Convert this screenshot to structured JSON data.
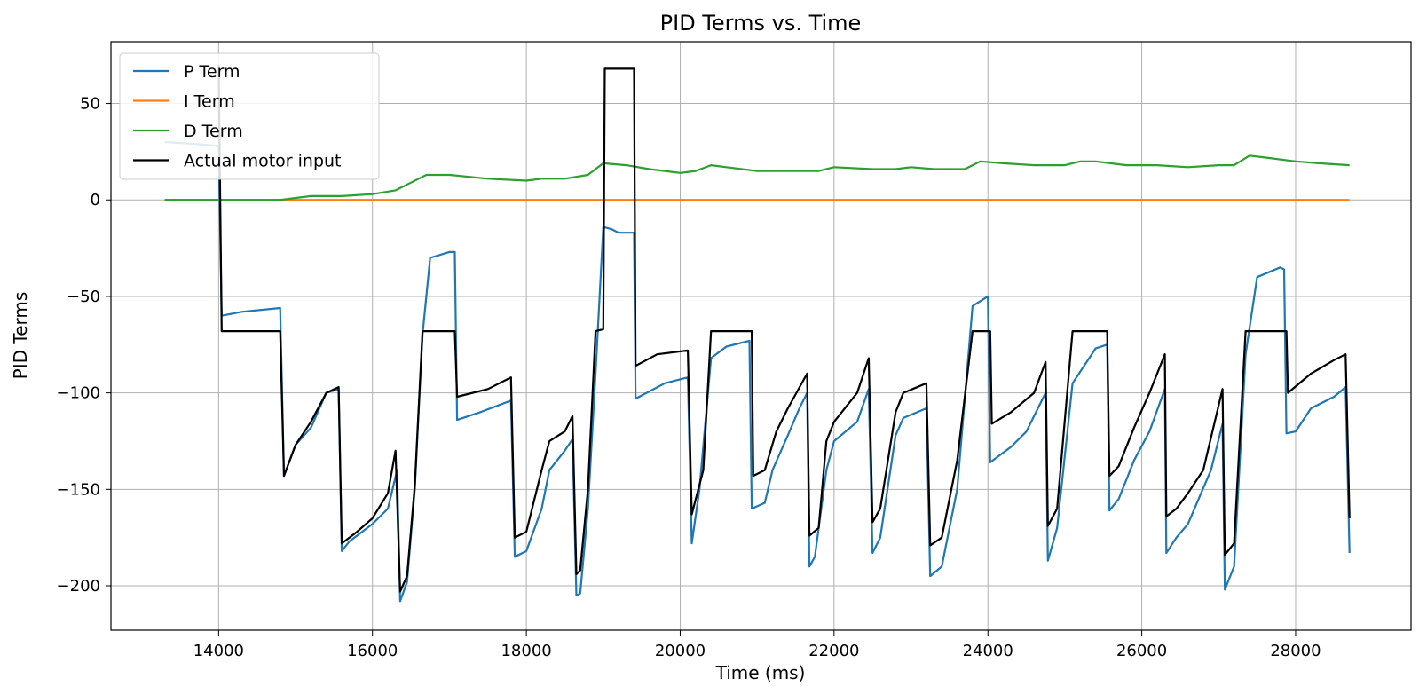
{
  "chart_data": {
    "type": "line",
    "title": "PID Terms vs. Time",
    "xlabel": "Time (ms)",
    "ylabel": "PID Terms",
    "xlim": [
      12600,
      29500
    ],
    "ylim": [
      -223,
      82
    ],
    "xticks": [
      14000,
      16000,
      18000,
      20000,
      22000,
      24000,
      26000,
      28000
    ],
    "yticks": [
      50,
      0,
      -50,
      -100,
      -150,
      -200
    ],
    "ytick_labels": [
      "50",
      "0",
      "−50",
      "−100",
      "−150",
      "−200"
    ],
    "grid": true,
    "legend": "upper-left",
    "series": [
      {
        "name": "P Term",
        "color": "#1f77b4",
        "points": [
          [
            13300,
            30
          ],
          [
            13700,
            29
          ],
          [
            14000,
            28
          ],
          [
            14040,
            -60
          ],
          [
            14300,
            -58
          ],
          [
            14800,
            -56
          ],
          [
            14850,
            -143
          ],
          [
            15000,
            -127
          ],
          [
            15200,
            -118
          ],
          [
            15400,
            -100
          ],
          [
            15560,
            -98
          ],
          [
            15600,
            -182
          ],
          [
            15700,
            -177
          ],
          [
            16000,
            -168
          ],
          [
            16200,
            -160
          ],
          [
            16320,
            -140
          ],
          [
            16360,
            -208
          ],
          [
            16450,
            -198
          ],
          [
            16550,
            -150
          ],
          [
            16650,
            -70
          ],
          [
            16750,
            -30
          ],
          [
            17000,
            -27
          ],
          [
            17070,
            -27
          ],
          [
            17100,
            -114
          ],
          [
            17400,
            -110
          ],
          [
            17800,
            -104
          ],
          [
            17850,
            -185
          ],
          [
            18000,
            -182
          ],
          [
            18200,
            -160
          ],
          [
            18300,
            -140
          ],
          [
            18500,
            -130
          ],
          [
            18600,
            -124
          ],
          [
            18650,
            -205
          ],
          [
            18700,
            -204
          ],
          [
            18800,
            -160
          ],
          [
            18900,
            -90
          ],
          [
            19000,
            -14
          ],
          [
            19100,
            -15
          ],
          [
            19200,
            -17
          ],
          [
            19400,
            -17
          ],
          [
            19420,
            -103
          ],
          [
            19800,
            -95
          ],
          [
            20100,
            -92
          ],
          [
            20150,
            -178
          ],
          [
            20250,
            -150
          ],
          [
            20400,
            -82
          ],
          [
            20600,
            -76
          ],
          [
            20900,
            -73
          ],
          [
            20930,
            -160
          ],
          [
            21100,
            -157
          ],
          [
            21200,
            -140
          ],
          [
            21400,
            -122
          ],
          [
            21550,
            -108
          ],
          [
            21650,
            -100
          ],
          [
            21680,
            -190
          ],
          [
            21750,
            -185
          ],
          [
            21900,
            -140
          ],
          [
            22000,
            -125
          ],
          [
            22300,
            -115
          ],
          [
            22450,
            -98
          ],
          [
            22500,
            -183
          ],
          [
            22600,
            -175
          ],
          [
            22800,
            -122
          ],
          [
            22900,
            -113
          ],
          [
            23200,
            -108
          ],
          [
            23250,
            -195
          ],
          [
            23400,
            -190
          ],
          [
            23600,
            -150
          ],
          [
            23800,
            -55
          ],
          [
            24000,
            -50
          ],
          [
            24030,
            -136
          ],
          [
            24300,
            -128
          ],
          [
            24500,
            -120
          ],
          [
            24750,
            -100
          ],
          [
            24780,
            -187
          ],
          [
            24900,
            -170
          ],
          [
            25100,
            -95
          ],
          [
            25400,
            -77
          ],
          [
            25550,
            -75
          ],
          [
            25580,
            -161
          ],
          [
            25700,
            -155
          ],
          [
            25900,
            -135
          ],
          [
            26100,
            -120
          ],
          [
            26300,
            -98
          ],
          [
            26320,
            -183
          ],
          [
            26450,
            -175
          ],
          [
            26600,
            -168
          ],
          [
            26900,
            -140
          ],
          [
            27050,
            -116
          ],
          [
            27080,
            -202
          ],
          [
            27200,
            -190
          ],
          [
            27350,
            -80
          ],
          [
            27500,
            -40
          ],
          [
            27800,
            -35
          ],
          [
            27850,
            -36
          ],
          [
            27880,
            -121
          ],
          [
            28000,
            -120
          ],
          [
            28200,
            -108
          ],
          [
            28500,
            -102
          ],
          [
            28650,
            -97
          ],
          [
            28700,
            -183
          ]
        ]
      },
      {
        "name": "I Term",
        "color": "#ff7f0e",
        "points": [
          [
            13300,
            0
          ],
          [
            28700,
            0
          ]
        ]
      },
      {
        "name": "D Term",
        "color": "#2ca02c",
        "points": [
          [
            13300,
            0
          ],
          [
            14800,
            0
          ],
          [
            15200,
            2
          ],
          [
            15600,
            2
          ],
          [
            16000,
            3
          ],
          [
            16300,
            5
          ],
          [
            16500,
            9
          ],
          [
            16700,
            13
          ],
          [
            17000,
            13
          ],
          [
            17500,
            11
          ],
          [
            18000,
            10
          ],
          [
            18200,
            11
          ],
          [
            18500,
            11
          ],
          [
            18800,
            13
          ],
          [
            19000,
            19
          ],
          [
            19300,
            18
          ],
          [
            19600,
            16
          ],
          [
            20000,
            14
          ],
          [
            20200,
            15
          ],
          [
            20400,
            18
          ],
          [
            20600,
            17
          ],
          [
            21000,
            15
          ],
          [
            21500,
            15
          ],
          [
            21800,
            15
          ],
          [
            22000,
            17
          ],
          [
            22500,
            16
          ],
          [
            22800,
            16
          ],
          [
            23000,
            17
          ],
          [
            23300,
            16
          ],
          [
            23700,
            16
          ],
          [
            23900,
            20
          ],
          [
            24200,
            19
          ],
          [
            24600,
            18
          ],
          [
            25000,
            18
          ],
          [
            25200,
            20
          ],
          [
            25400,
            20
          ],
          [
            25800,
            18
          ],
          [
            26200,
            18
          ],
          [
            26600,
            17
          ],
          [
            27000,
            18
          ],
          [
            27200,
            18
          ],
          [
            27400,
            23
          ],
          [
            27600,
            22
          ],
          [
            28000,
            20
          ],
          [
            28300,
            19
          ],
          [
            28700,
            18
          ]
        ]
      },
      {
        "name": "Actual motor input",
        "color": "#000000",
        "points": [
          [
            14000,
            70
          ],
          [
            14040,
            -68
          ],
          [
            14800,
            -68
          ],
          [
            14850,
            -143
          ],
          [
            15000,
            -127
          ],
          [
            15200,
            -115
          ],
          [
            15400,
            -100
          ],
          [
            15560,
            -97
          ],
          [
            15600,
            -178
          ],
          [
            15800,
            -172
          ],
          [
            16000,
            -165
          ],
          [
            16200,
            -152
          ],
          [
            16300,
            -130
          ],
          [
            16360,
            -203
          ],
          [
            16450,
            -195
          ],
          [
            16550,
            -148
          ],
          [
            16650,
            -68
          ],
          [
            17070,
            -68
          ],
          [
            17100,
            -102
          ],
          [
            17500,
            -98
          ],
          [
            17800,
            -92
          ],
          [
            17850,
            -175
          ],
          [
            18000,
            -172
          ],
          [
            18200,
            -140
          ],
          [
            18300,
            -125
          ],
          [
            18500,
            -120
          ],
          [
            18600,
            -112
          ],
          [
            18650,
            -194
          ],
          [
            18700,
            -192
          ],
          [
            18800,
            -150
          ],
          [
            18900,
            -68
          ],
          [
            19000,
            -67
          ],
          [
            19020,
            68
          ],
          [
            19400,
            68
          ],
          [
            19420,
            -86
          ],
          [
            19700,
            -80
          ],
          [
            20100,
            -78
          ],
          [
            20150,
            -163
          ],
          [
            20300,
            -140
          ],
          [
            20400,
            -68
          ],
          [
            20930,
            -68
          ],
          [
            20950,
            -143
          ],
          [
            21100,
            -140
          ],
          [
            21250,
            -120
          ],
          [
            21400,
            -108
          ],
          [
            21650,
            -90
          ],
          [
            21680,
            -174
          ],
          [
            21800,
            -170
          ],
          [
            21900,
            -125
          ],
          [
            22000,
            -115
          ],
          [
            22300,
            -100
          ],
          [
            22450,
            -82
          ],
          [
            22500,
            -167
          ],
          [
            22600,
            -160
          ],
          [
            22800,
            -110
          ],
          [
            22900,
            -100
          ],
          [
            23200,
            -95
          ],
          [
            23250,
            -179
          ],
          [
            23400,
            -175
          ],
          [
            23600,
            -135
          ],
          [
            23800,
            -68
          ],
          [
            24030,
            -68
          ],
          [
            24050,
            -116
          ],
          [
            24300,
            -110
          ],
          [
            24600,
            -100
          ],
          [
            24750,
            -84
          ],
          [
            24780,
            -169
          ],
          [
            24900,
            -160
          ],
          [
            25100,
            -68
          ],
          [
            25550,
            -68
          ],
          [
            25580,
            -143
          ],
          [
            25700,
            -138
          ],
          [
            25900,
            -118
          ],
          [
            26100,
            -100
          ],
          [
            26300,
            -80
          ],
          [
            26320,
            -164
          ],
          [
            26450,
            -160
          ],
          [
            26600,
            -152
          ],
          [
            26800,
            -140
          ],
          [
            27050,
            -98
          ],
          [
            27080,
            -184
          ],
          [
            27200,
            -178
          ],
          [
            27350,
            -68
          ],
          [
            27880,
            -68
          ],
          [
            27900,
            -100
          ],
          [
            28200,
            -90
          ],
          [
            28500,
            -83
          ],
          [
            28650,
            -80
          ],
          [
            28700,
            -165
          ]
        ]
      }
    ]
  }
}
